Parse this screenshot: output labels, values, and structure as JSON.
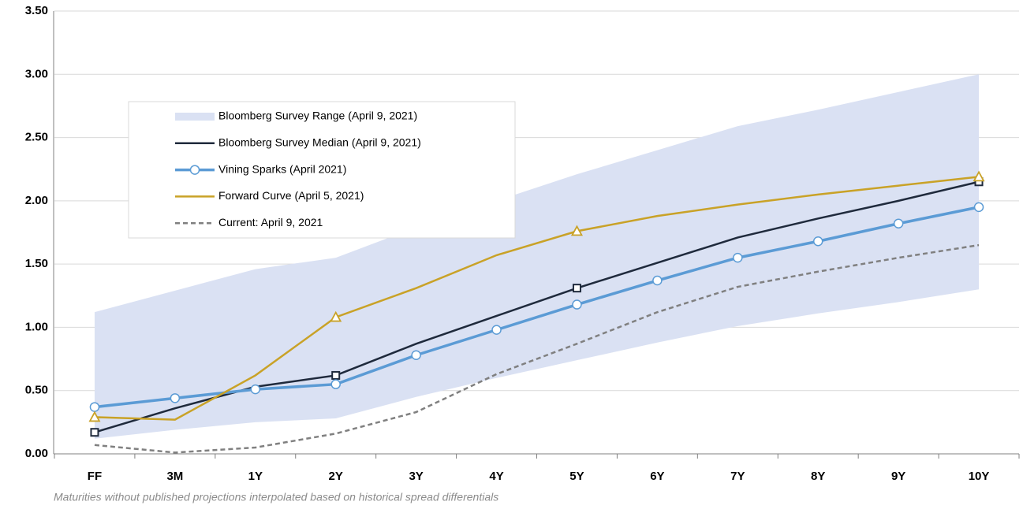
{
  "chart_data": {
    "type": "line",
    "categories": [
      "FF",
      "3M",
      "1Y",
      "2Y",
      "3Y",
      "4Y",
      "5Y",
      "6Y",
      "7Y",
      "8Y",
      "9Y",
      "10Y"
    ],
    "ylim": [
      0,
      3.5
    ],
    "yticks": [
      {
        "value": 0,
        "label": "0.00"
      },
      {
        "value": 0.5,
        "label": "0.50"
      },
      {
        "value": 1,
        "label": "1.00"
      },
      {
        "value": 1.5,
        "label": "1.50"
      },
      {
        "value": 2,
        "label": "2.00"
      },
      {
        "value": 2.5,
        "label": "2.50"
      },
      {
        "value": 3,
        "label": "3.00"
      },
      {
        "value": 3.5,
        "label": "3.50"
      }
    ],
    "grid": true,
    "legend": "upper left",
    "series": [
      {
        "name": "Bloomberg Survey Range (April 9, 2021)",
        "kind": "range",
        "color": "#dae1f3",
        "lower": [
          0.12,
          0.19,
          0.25,
          0.28,
          0.45,
          0.6,
          0.74,
          0.88,
          1.01,
          1.11,
          1.2,
          1.3
        ],
        "upper": [
          1.12,
          1.29,
          1.46,
          1.55,
          1.79,
          2.0,
          2.21,
          2.4,
          2.59,
          2.72,
          2.86,
          3.0
        ]
      },
      {
        "name": "Bloomberg Survey Median (April 9, 2021)",
        "color": "#1f2a3c",
        "marker": "square",
        "marker_index": [
          0,
          3,
          6,
          11
        ],
        "values": [
          0.17,
          0.36,
          0.53,
          0.62,
          0.87,
          1.09,
          1.31,
          1.51,
          1.71,
          1.86,
          2.0,
          2.15
        ]
      },
      {
        "name": "Vining Sparks (April 2021)",
        "color": "#5b9bd5",
        "marker": "circle",
        "values": [
          0.37,
          0.44,
          0.51,
          0.55,
          0.78,
          0.98,
          1.18,
          1.37,
          1.55,
          1.68,
          1.82,
          1.95
        ]
      },
      {
        "name": "Forward Curve (April 5, 2021)",
        "color": "#c9a227",
        "marker": "triangle",
        "marker_index": [
          0,
          3,
          6,
          11
        ],
        "values": [
          0.29,
          0.27,
          0.62,
          1.08,
          1.31,
          1.57,
          1.76,
          1.88,
          1.97,
          2.05,
          2.12,
          2.19
        ]
      },
      {
        "name": "Current: April 9, 2021",
        "color": "#808080",
        "dash": true,
        "values": [
          0.07,
          0.01,
          0.05,
          0.16,
          0.33,
          0.63,
          0.87,
          1.12,
          1.32,
          1.44,
          1.55,
          1.65
        ]
      }
    ],
    "footnote": "Maturities without published projections interpolated based on historical spread differentials"
  }
}
